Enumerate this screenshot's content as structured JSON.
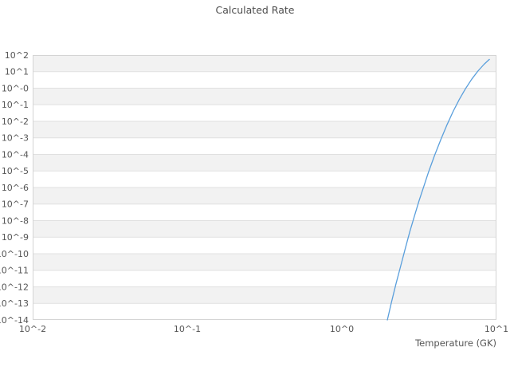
{
  "chart_data": {
    "type": "line",
    "title": "Calculated Rate",
    "xlabel": "Temperature (GK)",
    "ylabel": "",
    "x_scale": "log",
    "y_scale": "log",
    "xlim": [
      0.01,
      10
    ],
    "ylim": [
      1e-14,
      100
    ],
    "grid": "horizontal-bands-and-lines",
    "legend": "none",
    "x_tick_labels": [
      "10^-2",
      "10^-1",
      "10^0",
      "10^1"
    ],
    "x_tick_values": [
      0.01,
      0.1,
      1,
      10
    ],
    "y_tick_labels": [
      "10^2",
      "10^1",
      "10^-0",
      "10^-1",
      "10^-2",
      "10^-3",
      "10^-4",
      "10^-5",
      "10^-6",
      "10^-7",
      "10^-8",
      "10^-9",
      "10^-10",
      "10^-11",
      "10^-12",
      "10^-13",
      "10^-14"
    ],
    "y_tick_exponents": [
      2,
      1,
      0,
      -1,
      -2,
      -3,
      -4,
      -5,
      -6,
      -7,
      -8,
      -9,
      -10,
      -11,
      -12,
      -13,
      -14
    ],
    "colors": {
      "band": "#f2f2f2",
      "grid": "#e0e0e0",
      "border": "#d4d4d4",
      "title_text": "#4d4d4d",
      "tick_text": "#555555",
      "line": "#5a9fdc",
      "background": "#ffffff"
    },
    "series": [
      {
        "name": "calculated-rate",
        "color": "#5a9fdc",
        "points": [
          [
            1.97,
            1e-14
          ],
          [
            2.09,
            1.1e-13
          ],
          [
            2.24,
            1.5e-12
          ],
          [
            2.4,
            1.8e-11
          ],
          [
            2.57,
            2e-10
          ],
          [
            2.75,
            2.1e-09
          ],
          [
            2.95,
            1.9e-08
          ],
          [
            3.16,
            1.6e-07
          ],
          [
            3.39,
            1.2e-06
          ],
          [
            3.63,
            8.1e-06
          ],
          [
            3.98,
            8.9e-05
          ],
          [
            4.37,
            0.00081
          ],
          [
            4.79,
            0.0062
          ],
          [
            5.25,
            0.04
          ],
          [
            5.75,
            0.21
          ],
          [
            6.31,
            0.94
          ],
          [
            6.92,
            3.5
          ],
          [
            7.59,
            10.9
          ],
          [
            8.32,
            28.0
          ],
          [
            9.0,
            55.0
          ]
        ]
      }
    ]
  }
}
